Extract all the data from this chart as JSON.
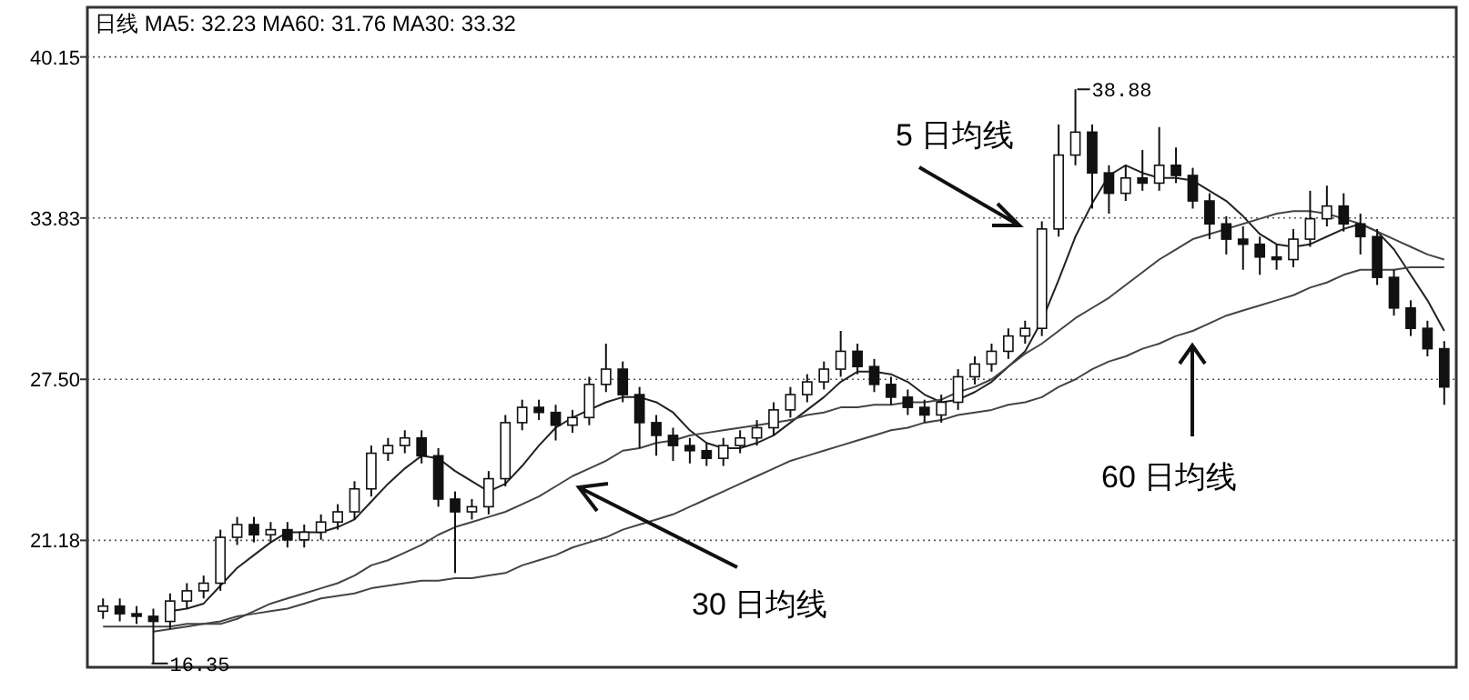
{
  "chart_data": {
    "type": "candlestick",
    "title": "日线  MA5: 32.23 MA60: 31.76 MA30: 33.32",
    "categories": [
      null,
      null,
      null,
      null,
      null,
      null,
      null,
      null,
      null,
      null,
      null,
      null,
      null,
      null,
      null,
      null,
      null,
      null,
      null,
      null,
      null,
      null,
      null,
      null,
      null,
      null,
      null,
      null,
      null,
      null,
      null,
      null,
      null,
      null,
      null,
      null,
      null,
      null,
      null,
      null,
      null,
      null,
      null,
      null,
      null,
      null,
      null,
      null,
      null,
      null,
      null,
      null,
      null,
      null,
      null,
      null,
      null,
      null,
      null,
      null,
      null,
      null,
      null,
      null,
      null,
      null,
      null,
      null,
      null,
      null,
      null,
      null,
      null,
      null,
      null,
      null,
      null,
      null,
      null,
      null,
      null
    ],
    "ohlc": [
      [
        18.4,
        18.9,
        18.1,
        18.6
      ],
      [
        18.6,
        18.9,
        18.0,
        18.3
      ],
      [
        18.3,
        18.6,
        17.9,
        18.2
      ],
      [
        18.2,
        18.5,
        16.35,
        18.0
      ],
      [
        18.0,
        19.1,
        17.7,
        18.8
      ],
      [
        18.8,
        19.5,
        18.5,
        19.2
      ],
      [
        19.2,
        19.8,
        18.9,
        19.5
      ],
      [
        19.5,
        21.6,
        19.2,
        21.3
      ],
      [
        21.3,
        22.1,
        21.0,
        21.8
      ],
      [
        21.8,
        22.1,
        21.1,
        21.4
      ],
      [
        21.4,
        21.9,
        21.1,
        21.6
      ],
      [
        21.6,
        21.9,
        20.9,
        21.2
      ],
      [
        21.2,
        21.8,
        20.9,
        21.5
      ],
      [
        21.5,
        22.2,
        21.2,
        21.9
      ],
      [
        21.9,
        22.6,
        21.6,
        22.3
      ],
      [
        22.3,
        23.5,
        22.0,
        23.2
      ],
      [
        23.2,
        24.9,
        22.9,
        24.6
      ],
      [
        24.6,
        25.2,
        24.3,
        24.9
      ],
      [
        24.9,
        25.5,
        24.6,
        25.2
      ],
      [
        25.2,
        25.5,
        24.2,
        24.5
      ],
      [
        24.5,
        24.8,
        22.5,
        22.8
      ],
      [
        22.8,
        23.1,
        19.9,
        22.3
      ],
      [
        22.3,
        22.8,
        22.0,
        22.5
      ],
      [
        22.5,
        23.9,
        22.2,
        23.6
      ],
      [
        23.6,
        26.1,
        23.3,
        25.8
      ],
      [
        25.8,
        26.7,
        25.5,
        26.4
      ],
      [
        26.4,
        26.7,
        25.9,
        26.2
      ],
      [
        26.2,
        26.5,
        25.1,
        25.7
      ],
      [
        25.7,
        26.3,
        25.4,
        26.0
      ],
      [
        26.0,
        27.6,
        25.7,
        27.3
      ],
      [
        27.3,
        28.9,
        27.0,
        27.9
      ],
      [
        27.9,
        28.2,
        26.6,
        26.9
      ],
      [
        26.9,
        27.2,
        24.8,
        25.8
      ],
      [
        25.8,
        26.1,
        24.5,
        25.3
      ],
      [
        25.3,
        25.6,
        24.3,
        24.9
      ],
      [
        24.9,
        25.2,
        24.2,
        24.7
      ],
      [
        24.7,
        25.0,
        24.1,
        24.4
      ],
      [
        24.4,
        25.2,
        24.1,
        24.9
      ],
      [
        24.9,
        25.5,
        24.6,
        25.2
      ],
      [
        25.2,
        25.9,
        24.9,
        25.6
      ],
      [
        25.6,
        26.6,
        25.3,
        26.3
      ],
      [
        26.3,
        27.2,
        26.0,
        26.9
      ],
      [
        26.9,
        27.7,
        26.6,
        27.4
      ],
      [
        27.4,
        28.2,
        27.1,
        27.9
      ],
      [
        27.9,
        29.4,
        27.6,
        28.6
      ],
      [
        28.6,
        28.9,
        27.7,
        28.0
      ],
      [
        28.0,
        28.3,
        27.0,
        27.3
      ],
      [
        27.3,
        27.6,
        26.5,
        26.8
      ],
      [
        26.8,
        27.1,
        26.1,
        26.4
      ],
      [
        26.4,
        26.7,
        25.8,
        26.1
      ],
      [
        26.1,
        26.9,
        25.8,
        26.6
      ],
      [
        26.6,
        27.9,
        26.3,
        27.6
      ],
      [
        27.6,
        28.4,
        27.3,
        28.1
      ],
      [
        28.1,
        28.9,
        27.8,
        28.6
      ],
      [
        28.6,
        29.5,
        28.3,
        29.2
      ],
      [
        29.2,
        29.8,
        28.9,
        29.5
      ],
      [
        29.5,
        33.7,
        29.2,
        33.4
      ],
      [
        33.4,
        37.5,
        33.1,
        36.3
      ],
      [
        36.3,
        38.88,
        35.9,
        37.2
      ],
      [
        37.2,
        37.5,
        34.2,
        35.6
      ],
      [
        35.6,
        35.9,
        34.0,
        34.8
      ],
      [
        34.8,
        35.9,
        34.5,
        35.4
      ],
      [
        35.4,
        36.5,
        34.9,
        35.2
      ],
      [
        35.2,
        37.4,
        34.9,
        35.9
      ],
      [
        35.9,
        36.6,
        35.2,
        35.5
      ],
      [
        35.5,
        35.8,
        34.2,
        34.5
      ],
      [
        34.5,
        34.8,
        33.0,
        33.6
      ],
      [
        33.6,
        33.9,
        32.4,
        33.0
      ],
      [
        33.0,
        33.5,
        31.8,
        32.8
      ],
      [
        32.8,
        33.1,
        31.6,
        32.3
      ],
      [
        32.3,
        32.8,
        31.8,
        32.2
      ],
      [
        32.2,
        33.4,
        31.9,
        33.0
      ],
      [
        33.0,
        34.9,
        32.7,
        33.8
      ],
      [
        33.8,
        35.1,
        33.5,
        34.3
      ],
      [
        34.3,
        34.8,
        33.3,
        33.6
      ],
      [
        33.6,
        34.0,
        32.4,
        33.1
      ],
      [
        33.1,
        33.4,
        31.2,
        31.5
      ],
      [
        31.5,
        31.8,
        30.0,
        30.3
      ],
      [
        30.3,
        30.6,
        29.2,
        29.5
      ],
      [
        29.5,
        29.8,
        28.4,
        28.7
      ],
      [
        28.7,
        29.0,
        26.5,
        27.2
      ]
    ],
    "series": [
      {
        "type": "line",
        "color": "#222222",
        "values": [
          null,
          null,
          null,
          null,
          18.4,
          18.5,
          18.7,
          19.4,
          20.1,
          20.6,
          21.1,
          21.5,
          21.5,
          21.5,
          21.7,
          22.0,
          22.7,
          23.4,
          24.0,
          24.5,
          24.4,
          23.9,
          23.5,
          23.1,
          23.4,
          24.1,
          24.9,
          25.6,
          26.0,
          26.3,
          26.6,
          26.8,
          26.8,
          26.6,
          26.2,
          25.5,
          25.0,
          24.8,
          24.8,
          25.0,
          25.3,
          25.8,
          26.3,
          26.8,
          27.4,
          27.8,
          27.8,
          27.7,
          27.4,
          26.9,
          26.6,
          26.7,
          27.0,
          27.4,
          28.0,
          28.6,
          29.8,
          31.4,
          33.1,
          34.4,
          35.5,
          35.9,
          35.6,
          35.4,
          35.4,
          35.3,
          34.9,
          34.5,
          33.9,
          33.2,
          32.8,
          32.7,
          32.8,
          33.1,
          33.4,
          33.6,
          33.3,
          32.6,
          31.6,
          30.6,
          29.4
        ]
      },
      {
        "type": "line",
        "color": "#444444",
        "values": [
          17.8,
          17.8,
          17.8,
          17.8,
          17.8,
          17.9,
          17.9,
          17.9,
          18.1,
          18.4,
          18.7,
          18.9,
          19.1,
          19.3,
          19.5,
          19.8,
          20.2,
          20.4,
          20.7,
          21.0,
          21.4,
          21.7,
          21.9,
          22.1,
          22.3,
          22.6,
          22.9,
          23.3,
          23.7,
          24.0,
          24.3,
          24.7,
          24.8,
          25.0,
          25.1,
          25.3,
          25.4,
          25.5,
          25.6,
          25.7,
          25.8,
          25.9,
          26.1,
          26.2,
          26.4,
          26.4,
          26.5,
          26.5,
          26.6,
          26.6,
          26.7,
          27.0,
          27.2,
          27.5,
          28.0,
          28.5,
          28.9,
          29.4,
          29.9,
          30.3,
          30.7,
          31.2,
          31.7,
          32.2,
          32.6,
          33.0,
          33.2,
          33.4,
          33.6,
          33.8,
          34.0,
          34.1,
          34.1,
          34.0,
          33.8,
          33.6,
          33.3,
          33.0,
          32.7,
          32.4,
          32.2
        ]
      },
      {
        "type": "line",
        "color": "#444444",
        "values": [
          null,
          null,
          null,
          17.6,
          17.7,
          17.8,
          17.9,
          18.0,
          18.2,
          18.3,
          18.4,
          18.5,
          18.7,
          18.9,
          19.0,
          19.1,
          19.3,
          19.4,
          19.5,
          19.6,
          19.6,
          19.7,
          19.7,
          19.8,
          19.9,
          20.2,
          20.4,
          20.6,
          20.9,
          21.1,
          21.3,
          21.6,
          21.8,
          22.0,
          22.2,
          22.5,
          22.8,
          23.1,
          23.4,
          23.7,
          24.0,
          24.3,
          24.5,
          24.7,
          24.9,
          25.1,
          25.3,
          25.5,
          25.6,
          25.8,
          25.9,
          26.1,
          26.2,
          26.3,
          26.5,
          26.6,
          26.8,
          27.2,
          27.5,
          27.9,
          28.2,
          28.4,
          28.7,
          28.9,
          29.2,
          29.4,
          29.7,
          30.0,
          30.2,
          30.4,
          30.6,
          30.8,
          31.1,
          31.3,
          31.6,
          31.8,
          31.8,
          31.8,
          31.9,
          31.9,
          31.9
        ]
      }
    ],
    "ylim": [
      16.2,
      42.1
    ],
    "yticks": [
      {
        "value": 21.18,
        "label": "21.18"
      },
      {
        "value": 27.5,
        "label": "27.50"
      },
      {
        "value": 33.83,
        "label": "33.83"
      },
      {
        "value": 40.15,
        "label": "40.15"
      }
    ],
    "grid": "y",
    "tick_labels": "y",
    "annotations": [
      "38.88",
      "16.35",
      "5 日均线",
      "30 日均线",
      "60 日均线"
    ]
  }
}
